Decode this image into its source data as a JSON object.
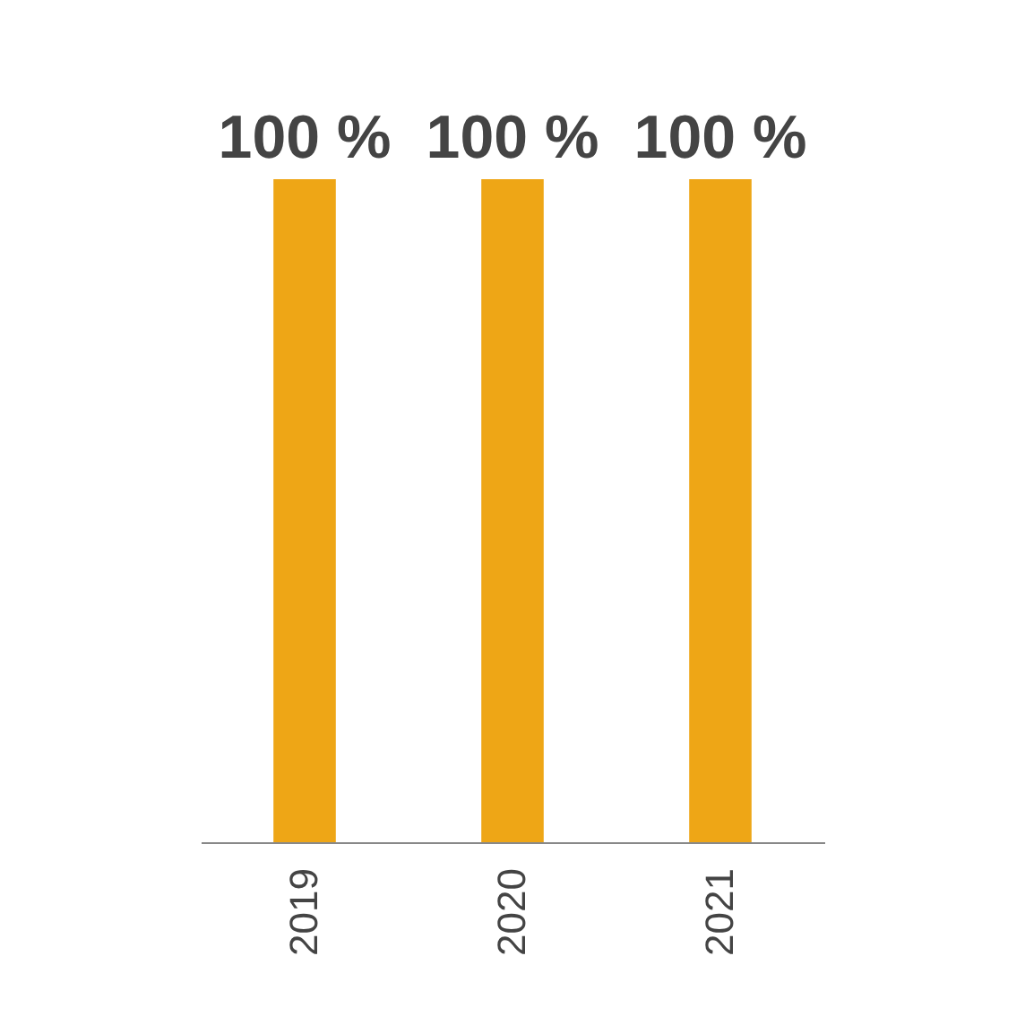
{
  "chart_data": {
    "type": "bar",
    "categories": [
      "2019",
      "2020",
      "2021"
    ],
    "values": [
      100,
      100,
      100
    ],
    "value_labels": [
      "100 %",
      "100 %",
      "100 %"
    ],
    "color": "#eea616"
  }
}
